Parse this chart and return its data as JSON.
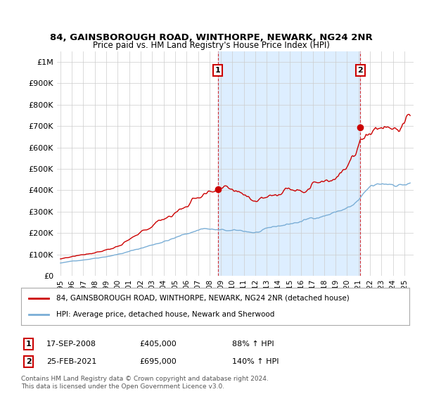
{
  "title": "84, GAINSBOROUGH ROAD, WINTHORPE, NEWARK, NG24 2NR",
  "subtitle": "Price paid vs. HM Land Registry's House Price Index (HPI)",
  "ylabel_ticks": [
    "£0",
    "£100K",
    "£200K",
    "£300K",
    "£400K",
    "£500K",
    "£600K",
    "£700K",
    "£800K",
    "£900K",
    "£1M"
  ],
  "ytick_values": [
    0,
    100000,
    200000,
    300000,
    400000,
    500000,
    600000,
    700000,
    800000,
    900000,
    1000000
  ],
  "ylim": [
    0,
    1050000
  ],
  "xlim_start": 1994.7,
  "xlim_end": 2025.8,
  "property_color": "#cc0000",
  "hpi_color": "#7aaed6",
  "shade_color": "#ddeeff",
  "legend_property": "84, GAINSBOROUGH ROAD, WINTHORPE, NEWARK, NG24 2NR (detached house)",
  "legend_hpi": "HPI: Average price, detached house, Newark and Sherwood",
  "sale1_label": "1",
  "sale1_date": "17-SEP-2008",
  "sale1_price": "£405,000",
  "sale1_hpi": "88% ↑ HPI",
  "sale1_year": 2008.72,
  "sale1_value": 405000,
  "sale2_label": "2",
  "sale2_date": "25-FEB-2021",
  "sale2_price": "£695,000",
  "sale2_hpi": "140% ↑ HPI",
  "sale2_year": 2021.15,
  "sale2_value": 695000,
  "footnote1": "Contains HM Land Registry data © Crown copyright and database right 2024.",
  "footnote2": "This data is licensed under the Open Government Licence v3.0.",
  "background_color": "#ffffff",
  "grid_color": "#cccccc"
}
